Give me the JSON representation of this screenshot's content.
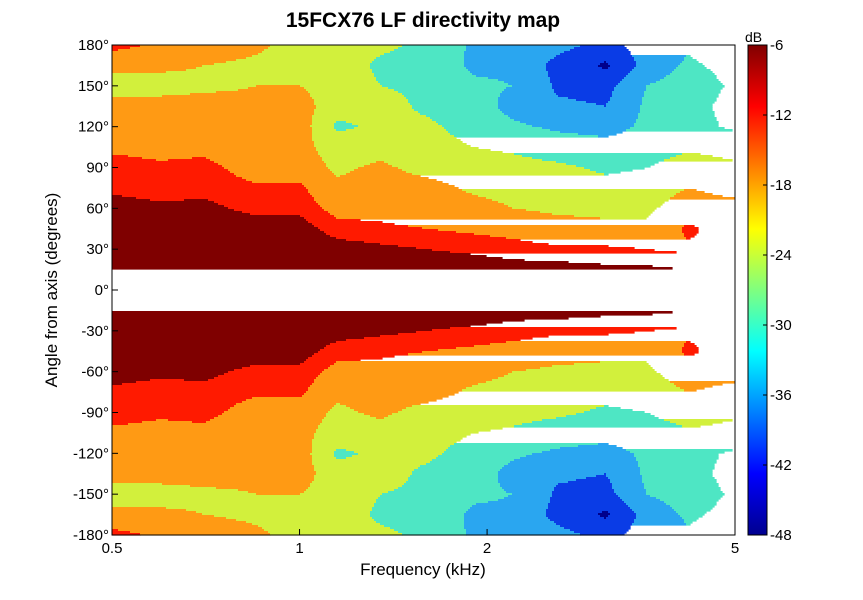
{
  "chart_data": {
    "type": "heatmap",
    "title": "15FCX76 LF directivity map",
    "xlabel": "Frequency (kHz)",
    "ylabel": "Angle from axis (degrees)",
    "x_scale": "log",
    "xlim": [
      0.5,
      5
    ],
    "ylim": [
      -180,
      180
    ],
    "xticks": [
      "0.5",
      "1",
      "2",
      "5"
    ],
    "xtick_values": [
      0.5,
      1,
      2,
      5
    ],
    "yticks": [
      "180°",
      "150°",
      "120°",
      "90°",
      "60°",
      "30°",
      "0°",
      "-30°",
      "-60°",
      "-90°",
      "-120°",
      "-150°",
      "-180°"
    ],
    "ytick_values": [
      180,
      150,
      120,
      90,
      60,
      30,
      0,
      -30,
      -60,
      -90,
      -120,
      -150,
      -180
    ],
    "colorbar": {
      "label": "dB",
      "range": [
        -48,
        -6
      ],
      "ticks": [
        "-6",
        "-12",
        "-18",
        "-24",
        "-30",
        "-36",
        "-42",
        "-48"
      ],
      "tick_values": [
        -6,
        -12,
        -18,
        -24,
        -30,
        -36,
        -42,
        -48
      ]
    },
    "mirror_about_zero": true,
    "frequencies_khz": [
      0.5,
      0.6,
      0.7,
      0.85,
      1.0,
      1.15,
      1.35,
      1.6,
      1.9,
      2.2,
      2.6,
      3.1,
      3.6,
      4.2,
      5.0
    ],
    "angles_deg": [
      0,
      15,
      30,
      45,
      60,
      75,
      90,
      105,
      120,
      135,
      150,
      165,
      180
    ],
    "values_db": [
      [
        -6,
        -6,
        -6,
        -6,
        -6,
        -6,
        -6,
        -6,
        -6,
        -6,
        -6,
        -6,
        -6,
        -7,
        -7
      ],
      [
        -6,
        -6,
        -6,
        -6,
        -6,
        -6,
        -6,
        -7,
        -7,
        -8,
        -8,
        -9,
        -9,
        -10,
        -10
      ],
      [
        -6,
        -6,
        -6,
        -6,
        -6,
        -8,
        -9,
        -10,
        -11,
        -12,
        -13,
        -13,
        -14,
        -15,
        -15
      ],
      [
        -7,
        -7,
        -7,
        -8,
        -8,
        -12,
        -13,
        -14,
        -15,
        -16,
        -18,
        -19,
        -19,
        -13,
        -17
      ],
      [
        -8,
        -9,
        -9,
        -11,
        -11,
        -16,
        -16,
        -17,
        -18,
        -20,
        -21,
        -21,
        -21,
        -17,
        -18
      ],
      [
        -11,
        -12,
        -11,
        -13,
        -13,
        -19,
        -17,
        -18,
        -21,
        -22,
        -23,
        -24,
        -23,
        -20,
        -22
      ],
      [
        -12,
        -13,
        -12,
        -17,
        -17,
        -21,
        -19,
        -22,
        -23,
        -24,
        -25,
        -27,
        -26,
        -23,
        -25
      ],
      [
        -15,
        -16,
        -16,
        -18,
        -18,
        -23,
        -22,
        -24,
        -26,
        -27,
        -29,
        -30,
        -29,
        -27,
        -28
      ],
      [
        -17,
        -17,
        -17,
        -18,
        -17,
        -27,
        -25,
        -25,
        -28,
        -31,
        -33,
        -34,
        -31,
        -30,
        -33
      ],
      [
        -18,
        -18,
        -18,
        -19,
        -17,
        -24,
        -24,
        -27,
        -29,
        -34,
        -37,
        -38,
        -31,
        -30,
        -34
      ],
      [
        -22,
        -22,
        -21,
        -20,
        -20,
        -23,
        -26,
        -27,
        -31,
        -32,
        -39,
        -40,
        -32,
        -29,
        -33
      ],
      [
        -19,
        -19,
        -20,
        -21,
        -22,
        -23,
        -27,
        -28,
        -33,
        -33,
        -40,
        -45,
        -36,
        -31,
        -34
      ],
      [
        -12,
        -15,
        -17,
        -19,
        -22,
        -24,
        -25,
        -27,
        -33,
        -34,
        -36,
        -40,
        -35,
        -33,
        -35
      ]
    ],
    "contour_levels_db": [
      -10,
      -14,
      -20,
      -26,
      -32,
      -38,
      -44
    ],
    "band_colors": [
      "#7f0000",
      "#ff1a00",
      "#ff9a14",
      "#d2f03c",
      "#4ee6c4",
      "#2aa6f0",
      "#0a3ce6",
      "#00008c"
    ],
    "grid": false
  }
}
